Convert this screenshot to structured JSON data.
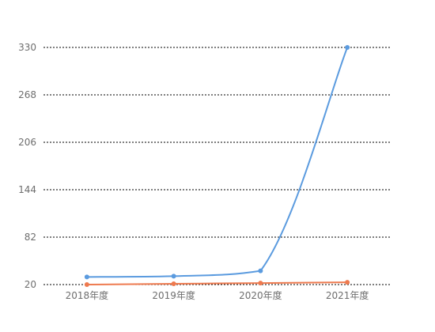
{
  "chart_data": {
    "type": "line",
    "categories": [
      "2018年度",
      "2019年度",
      "2020年度",
      "2021年度"
    ],
    "series": [
      {
        "values": [
          30,
          31,
          38,
          330
        ],
        "color": "#5b9bdf"
      },
      {
        "values": [
          20,
          21,
          22,
          23
        ],
        "color": "#ee7a4f"
      }
    ],
    "yticks": [
      20,
      82,
      144,
      206,
      268,
      330
    ],
    "ylim": [
      20,
      330
    ],
    "grid": true,
    "legend": "none",
    "smooth": true
  }
}
